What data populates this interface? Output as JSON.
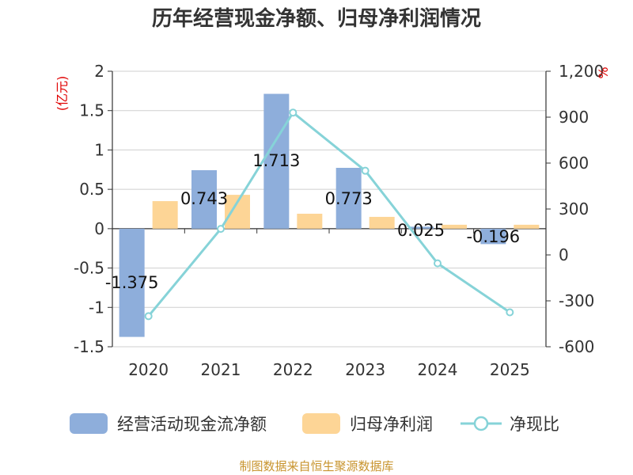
{
  "chart_data": {
    "type": "bar",
    "title": "历年经营现金净额、归母净利润情况",
    "categories": [
      "2020",
      "2021",
      "2022",
      "2023",
      "2024",
      "2025"
    ],
    "series": [
      {
        "name": "经营活动现金流净额",
        "type": "bar",
        "axis": "left",
        "values": [
          -1.375,
          0.743,
          1.713,
          0.773,
          0.025,
          -0.196
        ],
        "labels": [
          "-1.375",
          "0.743",
          "1.713",
          "0.773",
          "0.025",
          "-0.196"
        ],
        "color": "#8eaedb"
      },
      {
        "name": "归母净利润",
        "type": "bar",
        "axis": "left",
        "values": [
          0.35,
          0.43,
          0.19,
          0.15,
          0.05,
          0.05
        ],
        "color": "#fdd596"
      },
      {
        "name": "净现比",
        "type": "line",
        "axis": "right",
        "values": [
          -400,
          170,
          930,
          550,
          -55,
          -375
        ],
        "color": "#86d3d8"
      }
    ],
    "y_left": {
      "unit": "(亿元)",
      "ylim": [
        -1.5,
        2
      ],
      "ticks": [
        2,
        1.5,
        1,
        0.5,
        0,
        -0.5,
        -1,
        -1.5
      ],
      "tick_labels": [
        "2",
        "1.5",
        "1",
        "0.5",
        "0",
        "-0.5",
        "-1",
        "-1.5"
      ]
    },
    "y_right": {
      "unit": "%",
      "ylim": [
        -600,
        1200
      ],
      "ticks": [
        1200,
        900,
        600,
        300,
        0,
        -300,
        -600
      ],
      "tick_labels": [
        "1,200",
        "900",
        "600",
        "300",
        "0",
        "-300",
        "-600"
      ]
    },
    "legend_position": "bottom",
    "grid": true,
    "source": "制图数据来自恒生聚源数据库"
  }
}
